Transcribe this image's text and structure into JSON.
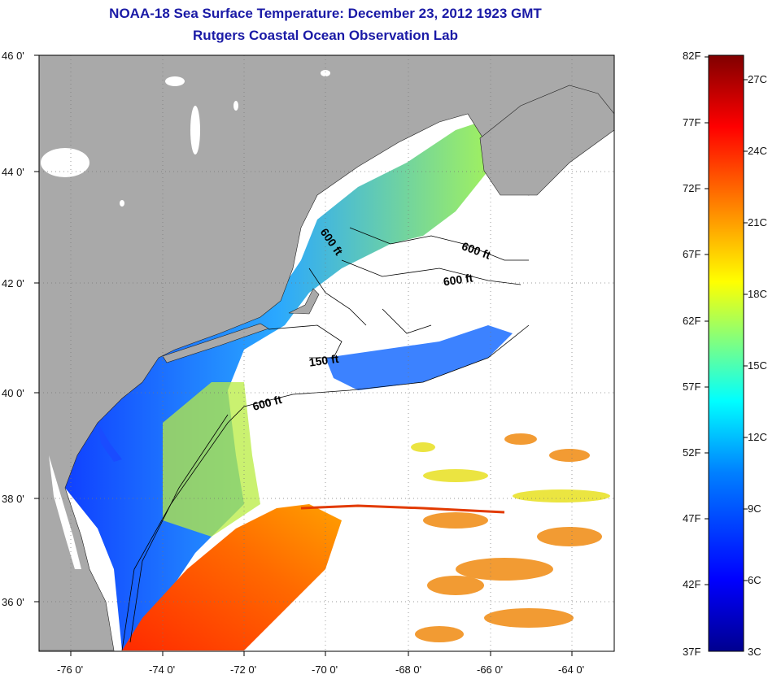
{
  "header": {
    "title": "NOAA-18 Sea Surface Temperature:  December 23, 2012 1923 GMT",
    "subtitle": "Rutgers Coastal Ocean Observation Lab"
  },
  "map": {
    "lon_labels": [
      "-76 0'",
      "-74 0'",
      "-72 0'",
      "-70 0'",
      "-68 0'",
      "-66 0'",
      "-64 0'"
    ],
    "lat_labels": [
      "46 0'",
      "44 0'",
      "42 0'",
      "40 0'",
      "38 0'",
      "36 0'"
    ],
    "contour_labels": [
      "600 ft",
      "600 ft",
      "600 ft",
      "150 ft",
      "600 ft"
    ],
    "land_color": "#a9a9a9",
    "cloud_color": "#ffffff"
  },
  "colorbar": {
    "f_labels": [
      "82F",
      "77F",
      "72F",
      "67F",
      "62F",
      "57F",
      "52F",
      "47F",
      "42F",
      "37F"
    ],
    "c_labels": [
      "27C",
      "24C",
      "21C",
      "18C",
      "15C",
      "12C",
      "9C",
      "6C",
      "3C"
    ],
    "colors": [
      "#00008f",
      "#0000ff",
      "#0080ff",
      "#00ffff",
      "#80ff80",
      "#ffff00",
      "#ff8000",
      "#ff0000",
      "#800000"
    ]
  }
}
